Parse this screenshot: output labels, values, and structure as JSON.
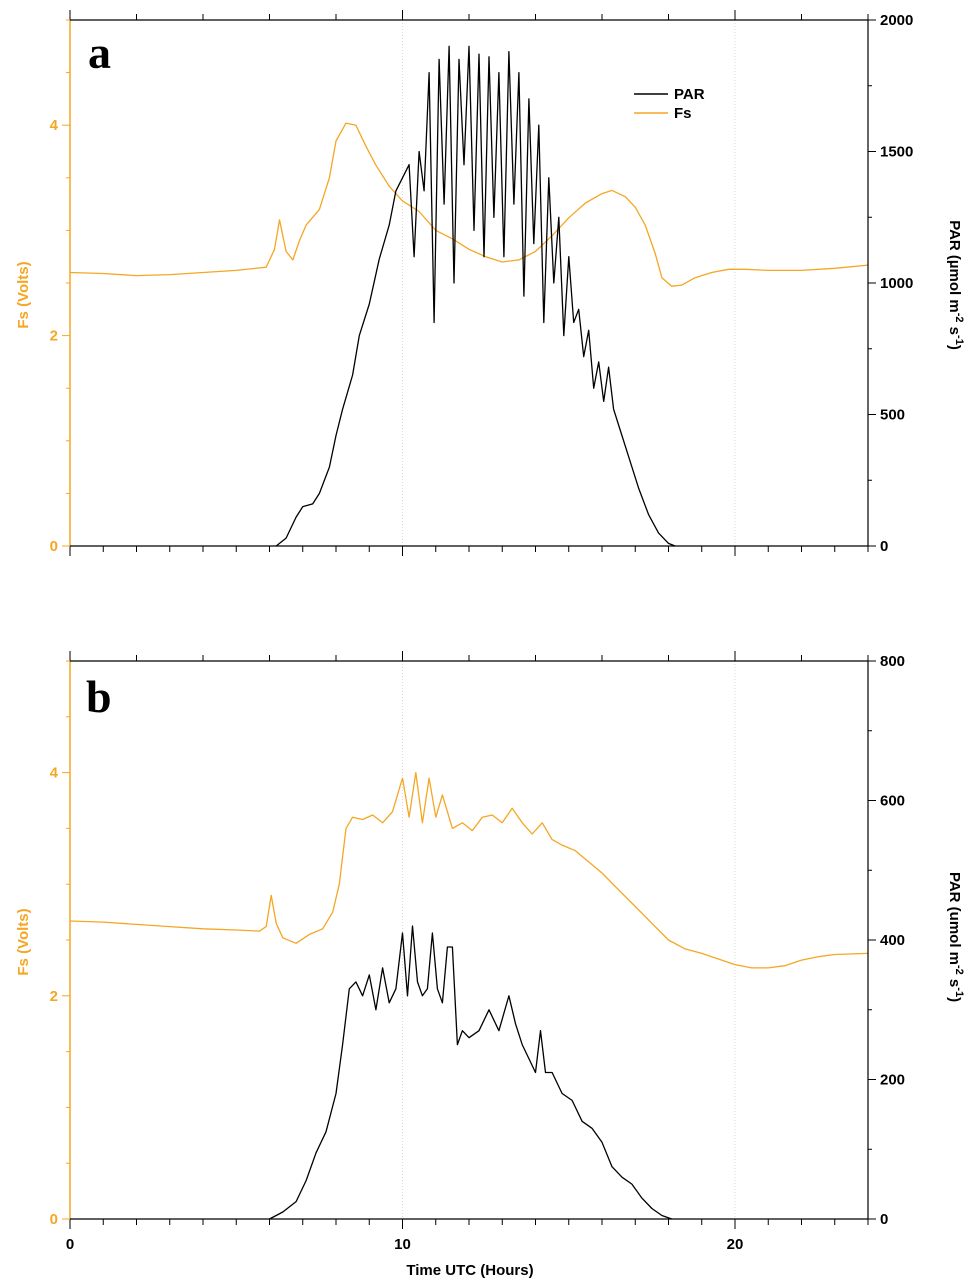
{
  "colors": {
    "fs": "#F5A623",
    "par": "#000000",
    "grid": "#d8d8d8",
    "axis_black": "#000000"
  },
  "chart_data": [
    {
      "type": "line",
      "panel_label": "a",
      "x_range": [
        0,
        24
      ],
      "left_axis": {
        "label": "Fs (Volts)",
        "ylim": [
          0,
          5
        ],
        "ticks": [
          0,
          2,
          4
        ],
        "color": "#F5A623"
      },
      "right_axis": {
        "label_main": "PAR (µmol m",
        "label_sup1": "-2",
        "label_mid": " s",
        "label_sup2": "-1",
        "label_end": ")",
        "ylim": [
          0,
          2000
        ],
        "ticks": [
          0,
          500,
          1000,
          1500,
          2000
        ]
      },
      "x_ticks": [
        0,
        10,
        20
      ],
      "grid": "vertical dotted at 10 and 20",
      "legend": {
        "position": "top-right",
        "entries": [
          {
            "name": "PAR",
            "color": "#000000"
          },
          {
            "name": "Fs",
            "color": "#F5A623"
          }
        ]
      },
      "series": [
        {
          "name": "Fs",
          "axis": "left",
          "color": "#F5A623",
          "x": [
            0,
            1,
            2,
            3,
            4,
            5,
            5.9,
            6.15,
            6.3,
            6.5,
            6.7,
            6.9,
            7.1,
            7.5,
            7.8,
            8.0,
            8.3,
            8.6,
            8.9,
            9.2,
            9.6,
            10.0,
            10.5,
            11.0,
            11.5,
            12.0,
            12.5,
            13.0,
            13.5,
            14.0,
            14.5,
            15.0,
            15.5,
            16.0,
            16.3,
            16.7,
            17.0,
            17.3,
            17.6,
            17.8,
            18.1,
            18.4,
            18.8,
            19.3,
            19.8,
            20.3,
            21,
            22,
            23,
            24
          ],
          "y": [
            2.6,
            2.59,
            2.57,
            2.58,
            2.6,
            2.62,
            2.65,
            2.82,
            3.1,
            2.8,
            2.72,
            2.9,
            3.05,
            3.2,
            3.5,
            3.85,
            4.02,
            4.0,
            3.8,
            3.62,
            3.42,
            3.28,
            3.18,
            3.0,
            2.92,
            2.82,
            2.75,
            2.7,
            2.72,
            2.8,
            2.95,
            3.12,
            3.26,
            3.35,
            3.38,
            3.32,
            3.22,
            3.05,
            2.78,
            2.55,
            2.47,
            2.48,
            2.55,
            2.6,
            2.63,
            2.63,
            2.62,
            2.62,
            2.64,
            2.67
          ]
        },
        {
          "name": "PAR",
          "axis": "right",
          "color": "#000000",
          "x": [
            6.2,
            6.5,
            6.8,
            7.0,
            7.3,
            7.5,
            7.8,
            8.0,
            8.2,
            8.5,
            8.7,
            9.0,
            9.3,
            9.6,
            9.8,
            10.0,
            10.2,
            10.35,
            10.5,
            10.65,
            10.8,
            10.95,
            11.1,
            11.25,
            11.4,
            11.55,
            11.7,
            11.85,
            12.0,
            12.15,
            12.3,
            12.45,
            12.6,
            12.75,
            12.9,
            13.05,
            13.2,
            13.35,
            13.5,
            13.65,
            13.8,
            13.95,
            14.1,
            14.25,
            14.4,
            14.55,
            14.7,
            14.85,
            15.0,
            15.15,
            15.3,
            15.45,
            15.6,
            15.75,
            15.9,
            16.05,
            16.2,
            16.35,
            16.5,
            16.8,
            17.1,
            17.4,
            17.7,
            18.0,
            18.2
          ],
          "y": [
            0,
            30,
            110,
            150,
            160,
            200,
            300,
            420,
            520,
            650,
            800,
            920,
            1090,
            1220,
            1350,
            1400,
            1450,
            1100,
            1500,
            1350,
            1800,
            850,
            1850,
            1300,
            1900,
            1000,
            1850,
            1450,
            1900,
            1200,
            1870,
            1100,
            1860,
            1250,
            1800,
            1100,
            1880,
            1300,
            1800,
            950,
            1700,
            1150,
            1600,
            850,
            1400,
            1000,
            1250,
            800,
            1100,
            850,
            900,
            720,
            820,
            600,
            700,
            550,
            680,
            520,
            460,
            340,
            220,
            120,
            50,
            10,
            0
          ]
        }
      ]
    },
    {
      "type": "line",
      "panel_label": "b",
      "x_range": [
        0,
        24
      ],
      "x_label": "Time UTC (Hours)",
      "left_axis": {
        "label": "Fs (Volts)",
        "ylim": [
          0,
          5
        ],
        "ticks": [
          0,
          2,
          4
        ],
        "color": "#F5A623"
      },
      "right_axis": {
        "label_main": "PAR (umol m",
        "label_sup1": "-2",
        "label_mid": " s",
        "label_sup2": "-1",
        "label_end": ")",
        "ylim": [
          0,
          800
        ],
        "ticks": [
          0,
          200,
          400,
          600,
          800
        ]
      },
      "x_ticks": [
        0,
        10,
        20
      ],
      "grid": "vertical dotted at 10 and 20",
      "series": [
        {
          "name": "Fs",
          "axis": "left",
          "color": "#F5A623",
          "x": [
            0,
            1,
            2,
            3,
            4,
            5,
            5.7,
            5.9,
            6.05,
            6.2,
            6.4,
            6.8,
            7.2,
            7.6,
            7.9,
            8.1,
            8.3,
            8.5,
            8.8,
            9.1,
            9.4,
            9.7,
            10.0,
            10.2,
            10.4,
            10.6,
            10.8,
            11.0,
            11.2,
            11.5,
            11.8,
            12.1,
            12.4,
            12.7,
            13.0,
            13.3,
            13.6,
            13.9,
            14.2,
            14.5,
            14.8,
            15.2,
            15.6,
            16.0,
            16.5,
            17.0,
            17.5,
            18.0,
            18.5,
            19.0,
            19.5,
            20.0,
            20.5,
            21.0,
            21.5,
            22.0,
            22.5,
            23.0,
            24.0
          ],
          "y": [
            2.67,
            2.66,
            2.64,
            2.62,
            2.6,
            2.59,
            2.58,
            2.62,
            2.9,
            2.65,
            2.52,
            2.47,
            2.55,
            2.6,
            2.75,
            3.0,
            3.5,
            3.6,
            3.58,
            3.62,
            3.55,
            3.65,
            3.95,
            3.6,
            4.0,
            3.55,
            3.95,
            3.6,
            3.8,
            3.5,
            3.55,
            3.48,
            3.6,
            3.62,
            3.55,
            3.68,
            3.55,
            3.45,
            3.55,
            3.4,
            3.35,
            3.3,
            3.2,
            3.1,
            2.95,
            2.8,
            2.65,
            2.5,
            2.42,
            2.38,
            2.33,
            2.28,
            2.25,
            2.25,
            2.27,
            2.32,
            2.35,
            2.37,
            2.38
          ]
        },
        {
          "name": "PAR",
          "axis": "right",
          "color": "#000000",
          "x": [
            6.0,
            6.4,
            6.8,
            7.1,
            7.4,
            7.7,
            8.0,
            8.2,
            8.4,
            8.6,
            8.8,
            9.0,
            9.2,
            9.4,
            9.6,
            9.8,
            10.0,
            10.15,
            10.3,
            10.45,
            10.6,
            10.75,
            10.9,
            11.05,
            11.2,
            11.35,
            11.5,
            11.65,
            11.8,
            12.0,
            12.3,
            12.6,
            12.9,
            13.2,
            13.4,
            13.6,
            13.8,
            14.0,
            14.15,
            14.3,
            14.5,
            14.8,
            15.1,
            15.4,
            15.7,
            16.0,
            16.3,
            16.6,
            16.9,
            17.2,
            17.5,
            17.8,
            18.1
          ],
          "y": [
            0,
            10,
            25,
            55,
            95,
            125,
            180,
            250,
            330,
            340,
            320,
            350,
            300,
            360,
            310,
            330,
            410,
            320,
            420,
            340,
            320,
            330,
            410,
            330,
            310,
            390,
            390,
            250,
            270,
            260,
            270,
            300,
            270,
            320,
            280,
            250,
            230,
            210,
            270,
            210,
            210,
            180,
            170,
            140,
            130,
            110,
            75,
            60,
            50,
            30,
            15,
            5,
            0
          ]
        }
      ]
    }
  ]
}
